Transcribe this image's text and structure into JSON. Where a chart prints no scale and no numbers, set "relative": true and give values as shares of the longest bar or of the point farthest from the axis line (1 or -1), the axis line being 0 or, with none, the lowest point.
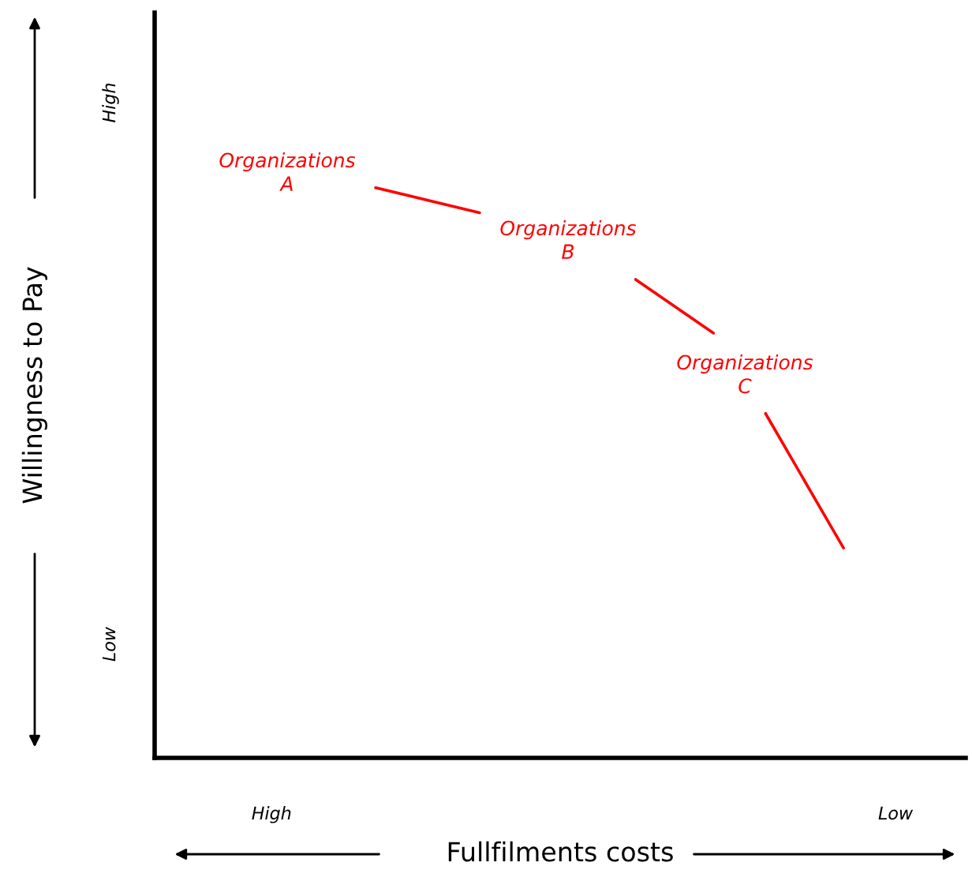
{
  "chart_data": {
    "type": "line",
    "relative": true,
    "xlabel": "Fullfilments costs",
    "ylabel": "Willingness to Pay",
    "categories": [
      null,
      null,
      null,
      null,
      "High",
      null,
      null,
      null,
      null,
      null,
      null,
      null,
      null,
      null,
      null,
      null,
      null,
      null,
      null,
      null,
      null,
      null,
      null,
      null,
      null,
      null,
      null,
      null,
      "Low",
      null,
      null
    ],
    "series": [
      {
        "color": "#ff0000",
        "values": [
          null,
          null,
          null,
          null,
          null,
          null,
          null,
          null,
          1,
          null,
          null,
          null,
          0.956,
          null,
          null,
          null,
          null,
          null,
          null,
          null,
          null,
          null,
          null,
          null,
          null,
          null,
          null,
          null,
          null,
          null,
          null
        ]
      },
      {
        "color": "#ff0000",
        "values": [
          null,
          null,
          null,
          null,
          null,
          null,
          null,
          null,
          null,
          null,
          null,
          null,
          null,
          null,
          null,
          null,
          null,
          null,
          0.839,
          null,
          null,
          0.745,
          null,
          null,
          null,
          null,
          null,
          null,
          null,
          null,
          null
        ]
      },
      {
        "color": "#ff0000",
        "values": [
          null,
          null,
          null,
          null,
          null,
          null,
          null,
          null,
          null,
          null,
          null,
          null,
          null,
          null,
          null,
          null,
          null,
          null,
          null,
          null,
          null,
          null,
          null,
          0.604,
          null,
          null,
          0.368,
          null,
          null,
          null,
          null
        ]
      }
    ],
    "annotations": [
      "Organizations\nA",
      "Organizations\nB",
      "Organizations\nC",
      "High",
      "Low"
    ],
    "grid": false
  }
}
